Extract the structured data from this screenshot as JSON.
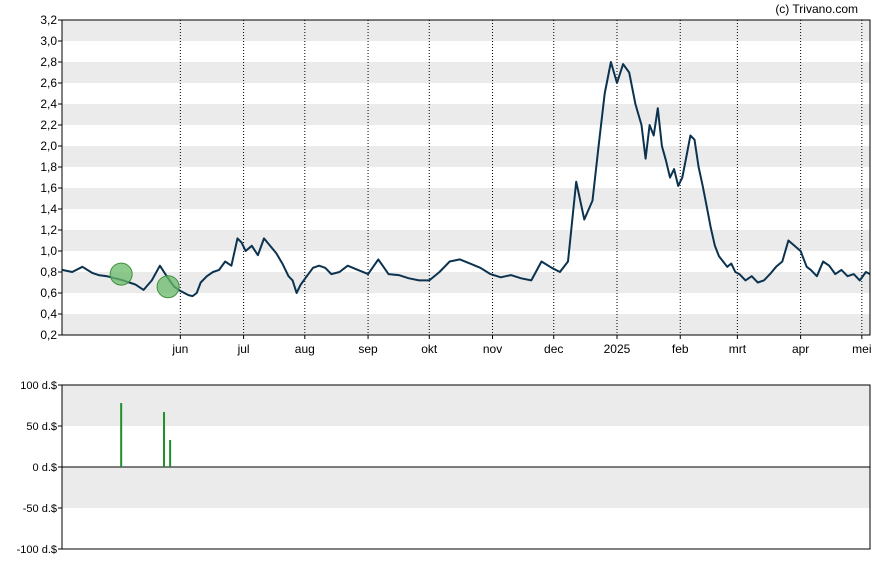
{
  "watermark": "(c) Trivano.com",
  "colors": {
    "band": "#ebebeb",
    "line": "#0b3350",
    "marker": "#6aba6a",
    "bar": "#1f8f2a",
    "axis": "#000000"
  },
  "chart_data": [
    {
      "type": "line",
      "title": "",
      "xlabel": "",
      "ylabel": "",
      "ylim": [
        0.2,
        3.2
      ],
      "y_ticks": [
        "0,2",
        "0,4",
        "0,6",
        "0,8",
        "1,0",
        "1,2",
        "1,4",
        "1,6",
        "1,8",
        "2,0",
        "2,2",
        "2,4",
        "2,6",
        "2,8",
        "3,0",
        "3,2"
      ],
      "x_ticks": [
        "jun",
        "jul",
        "aug",
        "sep",
        "okt",
        "nov",
        "dec",
        "2025",
        "feb",
        "mrt",
        "apr",
        "mei"
      ],
      "x_tick_days": [
        58,
        89,
        119,
        150,
        180,
        211,
        241,
        272,
        303,
        331,
        362,
        392
      ],
      "x_range_days": [
        0,
        396
      ],
      "grid": "vertical dotted lines at month starts, alternating horizontal bands",
      "series": [
        {
          "days": [
            0,
            5,
            10,
            15,
            18,
            22,
            26,
            30,
            33,
            36,
            40,
            44,
            48,
            52,
            55,
            58,
            62,
            64,
            66,
            68,
            71,
            74,
            77,
            80,
            83,
            86,
            88,
            90,
            93,
            96,
            99,
            102,
            105,
            108,
            111,
            113,
            115,
            117,
            120,
            123,
            126,
            129,
            132,
            136,
            140,
            145,
            150,
            155,
            160,
            165,
            170,
            175,
            180,
            185,
            190,
            195,
            200,
            205,
            210,
            215,
            220,
            225,
            230,
            235,
            240,
            244,
            248,
            252,
            256,
            260,
            263,
            266,
            269,
            272,
            275,
            278,
            281,
            284,
            286,
            288,
            290,
            292,
            294,
            296,
            298,
            300,
            302,
            304,
            306,
            308,
            310,
            312,
            314,
            316,
            318,
            320,
            322,
            324,
            326,
            328,
            330,
            332,
            335,
            338,
            341,
            344,
            347,
            350,
            353,
            356,
            359,
            362,
            365,
            367,
            370,
            373,
            376,
            379,
            382,
            385,
            388,
            391,
            394,
            396
          ],
          "values": [
            0.82,
            0.8,
            0.85,
            0.79,
            0.77,
            0.76,
            0.74,
            0.72,
            0.7,
            0.68,
            0.63,
            0.72,
            0.86,
            0.74,
            0.66,
            0.62,
            0.58,
            0.57,
            0.6,
            0.7,
            0.76,
            0.8,
            0.82,
            0.9,
            0.86,
            1.12,
            1.08,
            1.0,
            1.05,
            0.96,
            1.12,
            1.05,
            0.98,
            0.88,
            0.76,
            0.72,
            0.6,
            0.68,
            0.76,
            0.84,
            0.86,
            0.84,
            0.78,
            0.8,
            0.86,
            0.82,
            0.78,
            0.92,
            0.78,
            0.77,
            0.74,
            0.72,
            0.72,
            0.8,
            0.9,
            0.92,
            0.88,
            0.84,
            0.78,
            0.75,
            0.77,
            0.74,
            0.72,
            0.9,
            0.84,
            0.8,
            0.9,
            1.66,
            1.3,
            1.48,
            2.0,
            2.5,
            2.8,
            2.6,
            2.78,
            2.7,
            2.4,
            2.2,
            1.88,
            2.2,
            2.1,
            2.36,
            2.0,
            1.86,
            1.7,
            1.78,
            1.62,
            1.7,
            1.9,
            2.1,
            2.06,
            1.8,
            1.62,
            1.42,
            1.22,
            1.05,
            0.95,
            0.9,
            0.85,
            0.88,
            0.8,
            0.78,
            0.72,
            0.76,
            0.7,
            0.72,
            0.78,
            0.85,
            0.9,
            1.1,
            1.05,
            1.0,
            0.85,
            0.82,
            0.76,
            0.9,
            0.86,
            0.78,
            0.82,
            0.76,
            0.78,
            0.72,
            0.8,
            0.78
          ]
        }
      ],
      "markers": [
        {
          "day": 29,
          "value": 0.78
        },
        {
          "day": 52,
          "value": 0.66
        }
      ]
    },
    {
      "type": "bar",
      "title": "",
      "xlabel": "",
      "ylabel": "",
      "ylim": [
        -100,
        100
      ],
      "y_ticks": [
        "100 d.$",
        "50 d.$",
        "0 d.$",
        "-50 d.$",
        "-100 d.$"
      ],
      "x_range_days": [
        0,
        396
      ],
      "series": [
        {
          "days": [
            29,
            50,
            53
          ],
          "values": [
            78,
            67,
            33
          ]
        }
      ]
    }
  ]
}
